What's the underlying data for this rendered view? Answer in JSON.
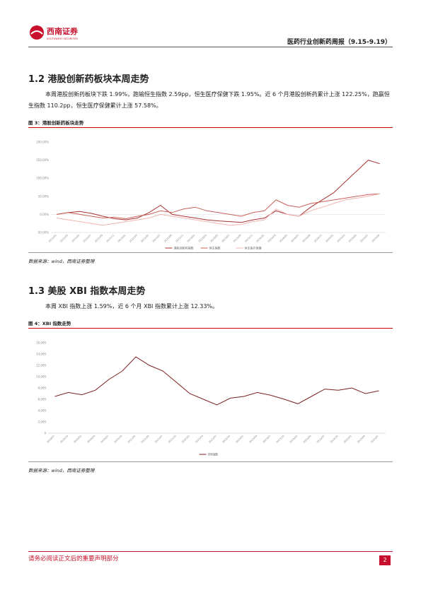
{
  "header": {
    "logo": "西南证券",
    "logo_sub": "SOUTHWEST SECURITIES",
    "title": "医药行业创新药周报（9.15-9.19）"
  },
  "sections": [
    {
      "heading": "1.2 港股创新药板块本周走势",
      "text": "本周港股创新药板块下跌 1.99%，跑输恒生指数 2.59pp，恒生医疗保健下跌 1.95%。近 6 个月港股创新药累计上涨 122.25%，跑赢恒生指数 110.2pp，恒生医疗保健累计上涨 57.58%。",
      "figure_caption": "图 3：港股创新药板块走势",
      "chart_data": {
        "type": "line",
        "categories": [
          "2021/01",
          "2021/03",
          "2021/05",
          "2021/07",
          "2021/09",
          "2021/11",
          "2022/01",
          "2022/03",
          "2022/05",
          "2022/07",
          "2022/09",
          "2022/11",
          "2023/01",
          "2023/03",
          "2023/05",
          "2023/07",
          "2023/09",
          "2023/11",
          "2024/01",
          "2024/03",
          "2024/05",
          "2024/07",
          "2024/09",
          "2024/11",
          "2025/01",
          "2025/03",
          "2025/05",
          "2025/07",
          "2025/09"
        ],
        "series": [
          {
            "name": "港股创新药指数",
            "color": "#a83232",
            "values": [
              0,
              5,
              8,
              3,
              -5,
              -12,
              -15,
              -10,
              5,
              25,
              0,
              -5,
              -10,
              -15,
              -18,
              -20,
              -22,
              -15,
              -10,
              10,
              0,
              -5,
              20,
              40,
              60,
              90,
              120,
              150,
              140
            ]
          },
          {
            "name": "恒生指数",
            "color": "#c9605a",
            "values": [
              0,
              5,
              0,
              -5,
              -10,
              -8,
              -12,
              -5,
              0,
              10,
              5,
              15,
              20,
              10,
              5,
              0,
              -5,
              5,
              10,
              40,
              25,
              20,
              30,
              35,
              40,
              45,
              50,
              55,
              57
            ]
          },
          {
            "name": "恒生医疗保健",
            "color": "#f0b4b0",
            "values": [
              -10,
              -15,
              -20,
              -25,
              -30,
              -25,
              -20,
              -15,
              -10,
              0,
              -5,
              -10,
              -15,
              -20,
              -25,
              -30,
              -28,
              -20,
              -15,
              15,
              0,
              -5,
              10,
              20,
              30,
              40,
              45,
              50,
              57
            ]
          }
        ],
        "ylim": [
          -50,
          200
        ],
        "yticks": [
          {
            "value": -50,
            "label": "-50.00%"
          },
          {
            "value": 0,
            "label": "0.00%"
          },
          {
            "value": 50,
            "label": "50.00%"
          },
          {
            "value": 100,
            "label": "100.00%"
          },
          {
            "value": 150,
            "label": "150.00%"
          },
          {
            "value": 200,
            "label": "200.00%"
          }
        ],
        "grid": false
      },
      "source": "数据来源：wind，西南证券整理"
    },
    {
      "heading": "1.3 美股 XBI 指数本周走势",
      "text": "本周 XBI 指数上涨 1.59%，近 6 个月 XBI 指数累计上涨 12.33%。",
      "figure_caption": "图 4：XBI 指数走势",
      "chart_data": {
        "type": "line",
        "categories": [
          "2019/07",
          "2019/10",
          "2020/01",
          "2020/04",
          "2020/07",
          "2020/10",
          "2021/01",
          "2021/04",
          "2021/07",
          "2021/10",
          "2022/01",
          "2022/04",
          "2022/07",
          "2022/10",
          "2023/01",
          "2023/04",
          "2023/07",
          "2023/10",
          "2024/01",
          "2024/04",
          "2024/07",
          "2024/10",
          "2025/01",
          "2025/04",
          "2025/07"
        ],
        "series": [
          {
            "name": "XBI指数",
            "color": "#7a1f1f",
            "values": [
              6500,
              7200,
              6800,
              7600,
              9500,
              11000,
              13500,
              12000,
              11000,
              9000,
              7000,
              6000,
              5000,
              6200,
              6500,
              7200,
              6700,
              6000,
              5200,
              6500,
              7800,
              7600,
              8000,
              7000,
              7500
            ]
          }
        ],
        "ylim": [
          0,
          16000
        ],
        "yticks": [
          {
            "value": 0,
            "label": "0"
          },
          {
            "value": 2000,
            "label": "2,000"
          },
          {
            "value": 4000,
            "label": "4,000"
          },
          {
            "value": 6000,
            "label": "6,000"
          },
          {
            "value": 8000,
            "label": "8,000"
          },
          {
            "value": 10000,
            "label": "10,000"
          },
          {
            "value": 12000,
            "label": "12,000"
          },
          {
            "value": 14000,
            "label": "14,000"
          },
          {
            "value": 16000,
            "label": "16,000"
          }
        ],
        "grid": false
      },
      "source": "数据来源：wind，西南证券整理"
    }
  ],
  "footer": {
    "notice": "请务必阅读正文后的重要声明部分",
    "page": "2"
  }
}
